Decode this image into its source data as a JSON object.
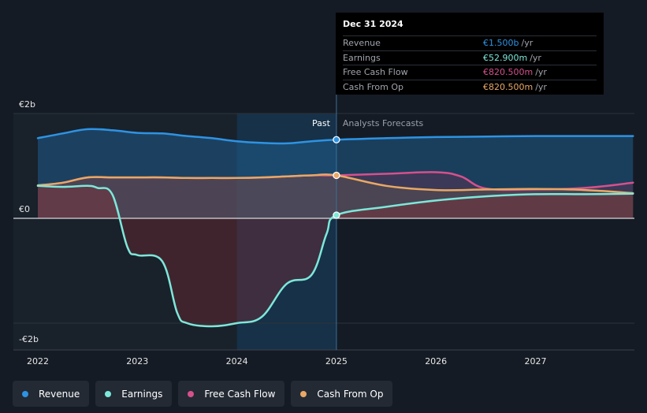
{
  "tooltip": {
    "date": "Dec 31 2024",
    "rows": [
      {
        "label": "Revenue",
        "value": "€1.500b",
        "unit": "/yr",
        "color": "#2e93e3"
      },
      {
        "label": "Earnings",
        "value": "€52.900m",
        "unit": "/yr",
        "color": "#7ce8da"
      },
      {
        "label": "Free Cash Flow",
        "value": "€820.500m",
        "unit": "/yr",
        "color": "#d6508d"
      },
      {
        "label": "Cash From Op",
        "value": "€820.500m",
        "unit": "/yr",
        "color": "#e9a865"
      }
    ]
  },
  "legend": [
    {
      "label": "Revenue",
      "color": "#2e93e3"
    },
    {
      "label": "Earnings",
      "color": "#7ce8da"
    },
    {
      "label": "Free Cash Flow",
      "color": "#d6508d"
    },
    {
      "label": "Cash From Op",
      "color": "#e9a865"
    }
  ],
  "chart_data": {
    "type": "line",
    "y_tick_labels": [
      "€2b",
      "€0",
      "-€2b"
    ],
    "y_ticks": [
      2,
      0,
      -2
    ],
    "ylim": [
      -2.5,
      2.0
    ],
    "x_tick_labels": [
      "2022",
      "2023",
      "2024",
      "2025",
      "2026",
      "2027"
    ],
    "x_ticks": [
      2022,
      2023,
      2024,
      2025,
      2026,
      2027
    ],
    "xlim": [
      2021.75,
      2027.98
    ],
    "past_label": "Past",
    "forecast_label": "Analysts Forecasts",
    "divider_x": 2025.0,
    "highlight_range": [
      2024.0,
      2025.0
    ],
    "grid": true,
    "series": [
      {
        "name": "Revenue",
        "color": "#2e93e3",
        "x": [
          2022.0,
          2022.25,
          2022.5,
          2022.75,
          2023.0,
          2023.25,
          2023.5,
          2023.75,
          2024.0,
          2024.25,
          2024.5,
          2024.75,
          2025.0,
          2025.5,
          2026.0,
          2026.5,
          2027.0,
          2027.5,
          2027.98
        ],
        "y": [
          1.53,
          1.62,
          1.7,
          1.68,
          1.63,
          1.62,
          1.57,
          1.53,
          1.47,
          1.44,
          1.43,
          1.47,
          1.5,
          1.53,
          1.55,
          1.56,
          1.57,
          1.57,
          1.57
        ]
      },
      {
        "name": "Free Cash Flow",
        "color": "#d6508d",
        "x": [
          2022.0,
          2022.25,
          2022.5,
          2022.75,
          2023.0,
          2023.25,
          2023.5,
          2023.75,
          2024.0,
          2024.25,
          2024.5,
          2024.75,
          2025.0,
          2025.5,
          2026.0,
          2026.25,
          2026.5,
          2027.0,
          2027.5,
          2027.98
        ],
        "y": [
          0.62,
          0.68,
          0.78,
          0.78,
          0.78,
          0.78,
          0.77,
          0.77,
          0.77,
          0.78,
          0.8,
          0.82,
          0.82,
          0.85,
          0.88,
          0.8,
          0.57,
          0.55,
          0.58,
          0.68
        ]
      },
      {
        "name": "Cash From Op",
        "color": "#e9a865",
        "x": [
          2022.0,
          2022.25,
          2022.5,
          2022.75,
          2023.0,
          2023.25,
          2023.5,
          2023.75,
          2024.0,
          2024.25,
          2024.5,
          2024.75,
          2025.0,
          2025.5,
          2026.0,
          2026.5,
          2027.0,
          2027.5,
          2027.98
        ],
        "y": [
          0.63,
          0.68,
          0.78,
          0.78,
          0.78,
          0.78,
          0.77,
          0.77,
          0.77,
          0.78,
          0.8,
          0.82,
          0.82,
          0.62,
          0.54,
          0.55,
          0.56,
          0.54,
          0.48
        ]
      },
      {
        "name": "Earnings",
        "color": "#7ce8da",
        "x": [
          2022.0,
          2022.25,
          2022.5,
          2022.6,
          2022.75,
          2022.9,
          2023.0,
          2023.25,
          2023.4,
          2023.5,
          2023.75,
          2024.0,
          2024.25,
          2024.5,
          2024.75,
          2024.9,
          2025.0,
          2025.5,
          2026.0,
          2026.5,
          2027.0,
          2027.5,
          2027.98
        ],
        "y": [
          0.62,
          0.6,
          0.62,
          0.58,
          0.45,
          -0.55,
          -0.7,
          -0.82,
          -1.8,
          -2.0,
          -2.06,
          -2.0,
          -1.88,
          -1.25,
          -1.08,
          -0.3,
          0.06,
          0.22,
          0.34,
          0.42,
          0.46,
          0.46,
          0.47
        ]
      }
    ],
    "markers": [
      {
        "series": "Revenue",
        "x": 2025.0,
        "y": 1.5
      },
      {
        "series": "Cash From Op",
        "x": 2025.0,
        "y": 0.82
      },
      {
        "series": "Earnings",
        "x": 2025.0,
        "y": 0.06
      }
    ]
  }
}
